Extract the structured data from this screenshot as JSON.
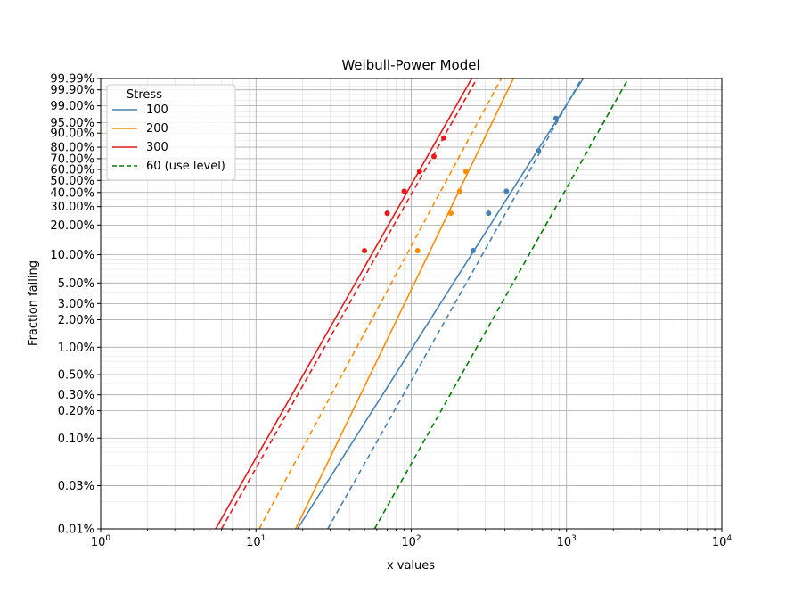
{
  "chart_data": {
    "type": "line",
    "title": "Weibull-Power Model",
    "xlabel": "x values",
    "ylabel": "Fraction failing",
    "x_scale": "log",
    "y_scale": "weibull",
    "xlim": [
      1,
      10000
    ],
    "ylim": [
      0.0001,
      0.9999
    ],
    "grid": true,
    "x_ticks": [
      {
        "value": 1,
        "base": "10",
        "exp": "0"
      },
      {
        "value": 10,
        "base": "10",
        "exp": "1"
      },
      {
        "value": 100,
        "base": "10",
        "exp": "2"
      },
      {
        "value": 1000,
        "base": "10",
        "exp": "3"
      },
      {
        "value": 10000,
        "base": "10",
        "exp": "4"
      }
    ],
    "y_ticks": [
      {
        "value": 0.0001,
        "label": "0.01%"
      },
      {
        "value": 0.0003,
        "label": "0.03%"
      },
      {
        "value": 0.001,
        "label": "0.10%"
      },
      {
        "value": 0.002,
        "label": "0.20%"
      },
      {
        "value": 0.003,
        "label": "0.30%"
      },
      {
        "value": 0.005,
        "label": "0.50%"
      },
      {
        "value": 0.01,
        "label": "1.00%"
      },
      {
        "value": 0.02,
        "label": "2.00%"
      },
      {
        "value": 0.03,
        "label": "3.00%"
      },
      {
        "value": 0.05,
        "label": "5.00%"
      },
      {
        "value": 0.1,
        "label": "10.00%"
      },
      {
        "value": 0.2,
        "label": "20.00%"
      },
      {
        "value": 0.3,
        "label": "30.00%"
      },
      {
        "value": 0.4,
        "label": "40.00%"
      },
      {
        "value": 0.5,
        "label": "50.00%"
      },
      {
        "value": 0.6,
        "label": "60.00%"
      },
      {
        "value": 0.7,
        "label": "70.00%"
      },
      {
        "value": 0.8,
        "label": "80.00%"
      },
      {
        "value": 0.9,
        "label": "90.00%"
      },
      {
        "value": 0.95,
        "label": "95.00%"
      },
      {
        "value": 0.99,
        "label": "99.00%"
      },
      {
        "value": 0.999,
        "label": "99.90%"
      },
      {
        "value": 0.9999,
        "label": "99.99%"
      }
    ],
    "legend": {
      "title": "Stress",
      "position": "upper-left",
      "entries": [
        {
          "label": "100",
          "color": "#4682b4",
          "style": "solid"
        },
        {
          "label": "200",
          "color": "#ff8c00",
          "style": "solid"
        },
        {
          "label": "300",
          "color": "#e41a1c",
          "style": "solid"
        },
        {
          "label": "60 (use level)",
          "color": "#008000",
          "style": "dashed"
        }
      ]
    },
    "series": [
      {
        "stress": "100",
        "color": "#4682b4",
        "solid_line": [
          [
            18.5,
            0.0001
          ],
          [
            1280,
            0.9999
          ]
        ],
        "dashed_line": [
          [
            29,
            0.0001
          ],
          [
            1250,
            0.9999
          ]
        ],
        "points": [
          [
            250,
            0.11
          ],
          [
            315,
            0.26
          ],
          [
            410,
            0.41
          ],
          [
            660,
            0.77
          ],
          [
            855,
            0.965
          ]
        ]
      },
      {
        "stress": "200",
        "color": "#ff8c00",
        "solid_line": [
          [
            18,
            0.0001
          ],
          [
            455,
            0.9999
          ]
        ],
        "dashed_line": [
          [
            10.5,
            0.0001
          ],
          [
            380,
            0.9999
          ]
        ],
        "points": [
          [
            110,
            0.11
          ],
          [
            180,
            0.26
          ],
          [
            205,
            0.41
          ],
          [
            225,
            0.58
          ]
        ]
      },
      {
        "stress": "300",
        "color": "#e41a1c",
        "solid_line": [
          [
            5.5,
            0.0001
          ],
          [
            245,
            0.9999
          ]
        ],
        "dashed_line": [
          [
            6.0,
            0.0001
          ],
          [
            265,
            0.9999
          ]
        ],
        "points": [
          [
            50,
            0.11
          ],
          [
            70,
            0.26
          ],
          [
            90,
            0.41
          ],
          [
            113,
            0.58
          ],
          [
            140,
            0.72
          ],
          [
            162,
            0.87
          ]
        ]
      },
      {
        "stress": "60 (use level)",
        "color": "#008000",
        "dashed_line": [
          [
            58,
            0.0001
          ],
          [
            2500,
            0.9999
          ]
        ]
      }
    ]
  }
}
